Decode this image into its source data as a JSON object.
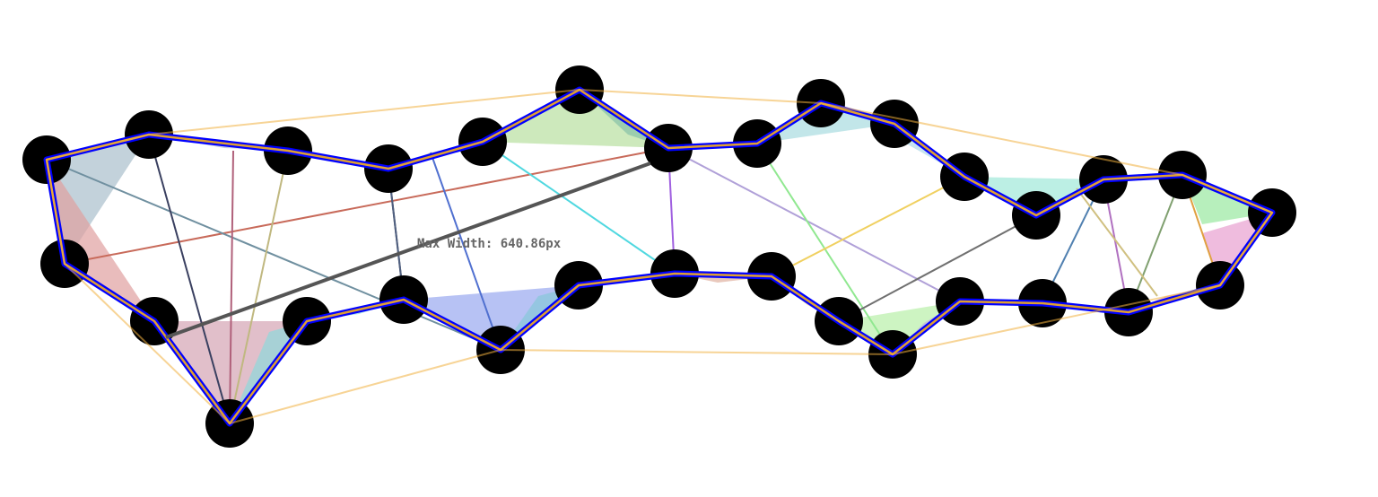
{
  "measurement": {
    "label": "Max Width: 640.86px"
  },
  "colors": {
    "background": "#ffffff",
    "vertex": "#000000",
    "outline": "#0000ff",
    "inner_outline": "#e0a030",
    "hull_edge": "#f0b040",
    "max_width_line": "#555555",
    "label": "#666666"
  }
}
